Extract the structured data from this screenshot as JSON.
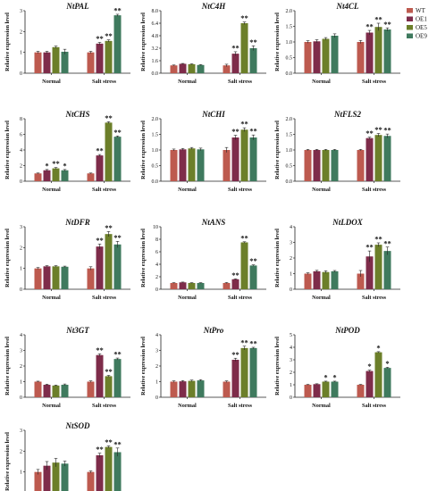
{
  "legend": [
    {
      "name": "WT",
      "color": "#bd5a4f"
    },
    {
      "name": "OE1",
      "color": "#7e2c4a"
    },
    {
      "name": "OE5",
      "color": "#6c7f2a"
    },
    {
      "name": "OE9",
      "color": "#3f7a5e"
    }
  ],
  "chart_data": [
    {
      "type": "bar",
      "title": "NtPAL",
      "ylabel": "Relative expression level",
      "categories": [
        "Normal",
        "Salt stress"
      ],
      "ylim": [
        0,
        3
      ],
      "yticks": [
        0,
        1,
        2,
        3
      ],
      "series": [
        {
          "name": "WT",
          "values": [
            1.0,
            1.0
          ],
          "errors": [
            0.05,
            0.05
          ]
        },
        {
          "name": "OE1",
          "values": [
            1.0,
            1.42
          ],
          "errors": [
            0.05,
            0.06
          ]
        },
        {
          "name": "OE5",
          "values": [
            1.25,
            1.55
          ],
          "errors": [
            0.05,
            0.05
          ]
        },
        {
          "name": "OE9",
          "values": [
            1.03,
            2.78
          ],
          "errors": [
            0.12,
            0.05
          ]
        }
      ],
      "significance": [
        [
          "",
          ""
        ],
        [
          "",
          "**"
        ],
        [
          "",
          "**"
        ],
        [
          "",
          "**"
        ]
      ]
    },
    {
      "type": "bar",
      "title": "NtC4H",
      "ylabel": "Relative expression level",
      "categories": [
        "Normal",
        "Salt stress"
      ],
      "ylim": [
        0,
        8.0
      ],
      "yticks": [
        0,
        1.6,
        3.2,
        4.8,
        6.4,
        8.0
      ],
      "series": [
        {
          "name": "WT",
          "values": [
            1.0,
            1.0
          ],
          "errors": [
            0.05,
            0.15
          ]
        },
        {
          "name": "OE1",
          "values": [
            1.2,
            2.5
          ],
          "errors": [
            0.05,
            0.25
          ]
        },
        {
          "name": "OE5",
          "values": [
            1.15,
            6.4
          ],
          "errors": [
            0.05,
            0.15
          ]
        },
        {
          "name": "OE9",
          "values": [
            1.05,
            3.2
          ],
          "errors": [
            0.05,
            0.3
          ]
        }
      ],
      "significance": [
        [
          "",
          ""
        ],
        [
          "",
          "**"
        ],
        [
          "",
          "**"
        ],
        [
          "",
          "**"
        ]
      ]
    },
    {
      "type": "bar",
      "title": "Nt4CL",
      "ylabel": "Relative expression level",
      "categories": [
        "Normal",
        "Salt stress"
      ],
      "ylim": [
        0,
        2.0
      ],
      "yticks": [
        0,
        0.5,
        1.0,
        1.5,
        2.0
      ],
      "series": [
        {
          "name": "WT",
          "values": [
            1.0,
            1.0
          ],
          "errors": [
            0.04,
            0.05
          ]
        },
        {
          "name": "OE1",
          "values": [
            1.02,
            1.3
          ],
          "errors": [
            0.05,
            0.07
          ]
        },
        {
          "name": "OE5",
          "values": [
            1.1,
            1.48
          ],
          "errors": [
            0.04,
            0.12
          ]
        },
        {
          "name": "OE9",
          "values": [
            1.2,
            1.4
          ],
          "errors": [
            0.06,
            0.05
          ]
        }
      ],
      "significance": [
        [
          "",
          ""
        ],
        [
          "",
          "**"
        ],
        [
          "",
          "**"
        ],
        [
          "",
          "**"
        ]
      ]
    },
    {
      "type": "bar",
      "title": "NtCHS",
      "ylabel": "Relative expression level",
      "categories": [
        "Normal",
        "Salt stress"
      ],
      "ylim": [
        0,
        8
      ],
      "yticks": [
        0,
        2,
        4,
        6,
        8
      ],
      "series": [
        {
          "name": "WT",
          "values": [
            1.0,
            1.0
          ],
          "errors": [
            0.05,
            0.05
          ]
        },
        {
          "name": "OE1",
          "values": [
            1.4,
            3.3
          ],
          "errors": [
            0.1,
            0.12
          ]
        },
        {
          "name": "OE5",
          "values": [
            1.65,
            7.5
          ],
          "errors": [
            0.1,
            0.12
          ]
        },
        {
          "name": "OE9",
          "values": [
            1.4,
            5.7
          ],
          "errors": [
            0.1,
            0.1
          ]
        }
      ],
      "significance": [
        [
          "",
          ""
        ],
        [
          "*",
          "**"
        ],
        [
          "**",
          "**"
        ],
        [
          "*",
          "**"
        ]
      ]
    },
    {
      "type": "bar",
      "title": "NtCHI",
      "ylabel": "Relative expression level",
      "categories": [
        "Normal",
        "Salt stress"
      ],
      "ylim": [
        0,
        2.0
      ],
      "yticks": [
        0,
        0.5,
        1.0,
        1.5,
        2.0
      ],
      "series": [
        {
          "name": "WT",
          "values": [
            1.0,
            1.0
          ],
          "errors": [
            0.03,
            0.08
          ]
        },
        {
          "name": "OE1",
          "values": [
            1.02,
            1.4
          ],
          "errors": [
            0.03,
            0.07
          ]
        },
        {
          "name": "OE5",
          "values": [
            1.05,
            1.65
          ],
          "errors": [
            0.03,
            0.06
          ]
        },
        {
          "name": "OE9",
          "values": [
            1.02,
            1.4
          ],
          "errors": [
            0.04,
            0.08
          ]
        }
      ],
      "significance": [
        [
          "",
          ""
        ],
        [
          "",
          "**"
        ],
        [
          "",
          "**"
        ],
        [
          "",
          "**"
        ]
      ]
    },
    {
      "type": "bar",
      "title": "NtFLS2",
      "ylabel": "Relative expression level",
      "categories": [
        "Normal",
        "Salt stress"
      ],
      "ylim": [
        0,
        2.0
      ],
      "yticks": [
        0,
        0.5,
        1.0,
        1.5,
        2.0
      ],
      "series": [
        {
          "name": "WT",
          "values": [
            1.0,
            1.0
          ],
          "errors": [
            0.02,
            0.02
          ]
        },
        {
          "name": "OE1",
          "values": [
            1.0,
            1.38
          ],
          "errors": [
            0.02,
            0.03
          ]
        },
        {
          "name": "OE5",
          "values": [
            1.0,
            1.48
          ],
          "errors": [
            0.02,
            0.05
          ]
        },
        {
          "name": "OE9",
          "values": [
            1.0,
            1.45
          ],
          "errors": [
            0.02,
            0.06
          ]
        }
      ],
      "significance": [
        [
          "",
          ""
        ],
        [
          "",
          "**"
        ],
        [
          "",
          "**"
        ],
        [
          "",
          "**"
        ]
      ]
    },
    {
      "type": "bar",
      "title": "NtDFR",
      "ylabel": "Relative expression level",
      "categories": [
        "Normal",
        "Salt stress"
      ],
      "ylim": [
        0,
        3
      ],
      "yticks": [
        0,
        1,
        2,
        3
      ],
      "series": [
        {
          "name": "WT",
          "values": [
            1.0,
            1.0
          ],
          "errors": [
            0.04,
            0.08
          ]
        },
        {
          "name": "OE1",
          "values": [
            1.1,
            2.05
          ],
          "errors": [
            0.03,
            0.12
          ]
        },
        {
          "name": "OE5",
          "values": [
            1.1,
            2.65
          ],
          "errors": [
            0.03,
            0.12
          ]
        },
        {
          "name": "OE9",
          "values": [
            1.08,
            2.15
          ],
          "errors": [
            0.03,
            0.15
          ]
        }
      ],
      "significance": [
        [
          "",
          ""
        ],
        [
          "",
          "**"
        ],
        [
          "",
          "**"
        ],
        [
          "",
          "**"
        ]
      ]
    },
    {
      "type": "bar",
      "title": "NtANS",
      "ylabel": "Relative expression level",
      "categories": [
        "Normal",
        "Salt stress"
      ],
      "ylim": [
        0,
        10
      ],
      "yticks": [
        0,
        2,
        4,
        6,
        8,
        10
      ],
      "series": [
        {
          "name": "WT",
          "values": [
            1.0,
            1.0
          ],
          "errors": [
            0.05,
            0.08
          ]
        },
        {
          "name": "OE1",
          "values": [
            1.1,
            1.6
          ],
          "errors": [
            0.05,
            0.06
          ]
        },
        {
          "name": "OE5",
          "values": [
            1.0,
            7.5
          ],
          "errors": [
            0.05,
            0.1
          ]
        },
        {
          "name": "OE9",
          "values": [
            1.0,
            3.8
          ],
          "errors": [
            0.05,
            0.1
          ]
        }
      ],
      "significance": [
        [
          "",
          ""
        ],
        [
          "",
          "**"
        ],
        [
          "",
          "**"
        ],
        [
          "",
          "**"
        ]
      ]
    },
    {
      "type": "bar",
      "title": "NtLDOX",
      "ylabel": "Relative expression level",
      "categories": [
        "Normal",
        "Salt stress"
      ],
      "ylim": [
        0,
        4
      ],
      "yticks": [
        0,
        1,
        2,
        3,
        4
      ],
      "series": [
        {
          "name": "WT",
          "values": [
            1.0,
            1.0
          ],
          "errors": [
            0.05,
            0.2
          ]
        },
        {
          "name": "OE1",
          "values": [
            1.15,
            2.1
          ],
          "errors": [
            0.06,
            0.35
          ]
        },
        {
          "name": "OE5",
          "values": [
            1.1,
            2.85
          ],
          "errors": [
            0.08,
            0.12
          ]
        },
        {
          "name": "OE9",
          "values": [
            1.15,
            2.45
          ],
          "errors": [
            0.05,
            0.25
          ]
        }
      ],
      "significance": [
        [
          "",
          ""
        ],
        [
          "",
          "**"
        ],
        [
          "",
          "**"
        ],
        [
          "",
          "**"
        ]
      ]
    },
    {
      "type": "bar",
      "title": "Nt3GT",
      "ylabel": "Relative expression level",
      "categories": [
        "Normal",
        "Salt stress"
      ],
      "ylim": [
        0,
        4
      ],
      "yticks": [
        0,
        1,
        2,
        3,
        4
      ],
      "series": [
        {
          "name": "WT",
          "values": [
            1.0,
            1.0
          ],
          "errors": [
            0.03,
            0.05
          ]
        },
        {
          "name": "OE1",
          "values": [
            0.8,
            2.7
          ],
          "errors": [
            0.04,
            0.08
          ]
        },
        {
          "name": "OE5",
          "values": [
            0.75,
            1.35
          ],
          "errors": [
            0.03,
            0.05
          ]
        },
        {
          "name": "OE9",
          "values": [
            0.8,
            2.45
          ],
          "errors": [
            0.05,
            0.06
          ]
        }
      ],
      "significance": [
        [
          "",
          ""
        ],
        [
          "",
          "**"
        ],
        [
          "",
          "**"
        ],
        [
          "",
          "**"
        ]
      ]
    },
    {
      "type": "bar",
      "title": "NtPro",
      "ylabel": "Relative expression level",
      "categories": [
        "Normal",
        "Salt stress"
      ],
      "ylim": [
        0,
        4
      ],
      "yticks": [
        0,
        1,
        2,
        3,
        4
      ],
      "series": [
        {
          "name": "WT",
          "values": [
            1.0,
            1.0
          ],
          "errors": [
            0.05,
            0.05
          ]
        },
        {
          "name": "OE1",
          "values": [
            1.02,
            2.4
          ],
          "errors": [
            0.05,
            0.1
          ]
        },
        {
          "name": "OE5",
          "values": [
            1.05,
            3.15
          ],
          "errors": [
            0.05,
            0.12
          ]
        },
        {
          "name": "OE9",
          "values": [
            1.08,
            3.15
          ],
          "errors": [
            0.05,
            0.05
          ]
        }
      ],
      "significance": [
        [
          "",
          ""
        ],
        [
          "",
          "**"
        ],
        [
          "",
          "**"
        ],
        [
          "",
          "**"
        ]
      ]
    },
    {
      "type": "bar",
      "title": "NtPOD",
      "ylabel": "Relative expression level",
      "categories": [
        "Normal",
        "Salt stress"
      ],
      "ylim": [
        0,
        5
      ],
      "yticks": [
        0,
        1,
        2,
        3,
        4,
        5
      ],
      "series": [
        {
          "name": "WT",
          "values": [
            1.0,
            1.0
          ],
          "errors": [
            0.03,
            0.03
          ]
        },
        {
          "name": "OE1",
          "values": [
            1.05,
            2.1
          ],
          "errors": [
            0.03,
            0.07
          ]
        },
        {
          "name": "OE5",
          "values": [
            1.25,
            3.6
          ],
          "errors": [
            0.04,
            0.05
          ]
        },
        {
          "name": "OE9",
          "values": [
            1.25,
            2.35
          ],
          "errors": [
            0.04,
            0.05
          ]
        }
      ],
      "significance": [
        [
          "",
          ""
        ],
        [
          "",
          "*"
        ],
        [
          "*",
          "*"
        ],
        [
          "*",
          "*"
        ]
      ]
    },
    {
      "type": "bar",
      "title": "NtSOD",
      "ylabel": "Relative expression level",
      "categories": [
        "Normal",
        "Salt stress"
      ],
      "ylim": [
        0,
        3
      ],
      "yticks": [
        0,
        1,
        2,
        3
      ],
      "series": [
        {
          "name": "WT",
          "values": [
            1.0,
            1.0
          ],
          "errors": [
            0.12,
            0.05
          ]
        },
        {
          "name": "OE1",
          "values": [
            1.3,
            1.8
          ],
          "errors": [
            0.2,
            0.1
          ]
        },
        {
          "name": "OE5",
          "values": [
            1.45,
            2.2
          ],
          "errors": [
            0.2,
            0.05
          ]
        },
        {
          "name": "OE9",
          "values": [
            1.4,
            1.95
          ],
          "errors": [
            0.12,
            0.2
          ]
        }
      ],
      "significance": [
        [
          "",
          ""
        ],
        [
          "",
          "**"
        ],
        [
          "",
          "**"
        ],
        [
          "",
          "**"
        ]
      ]
    }
  ]
}
